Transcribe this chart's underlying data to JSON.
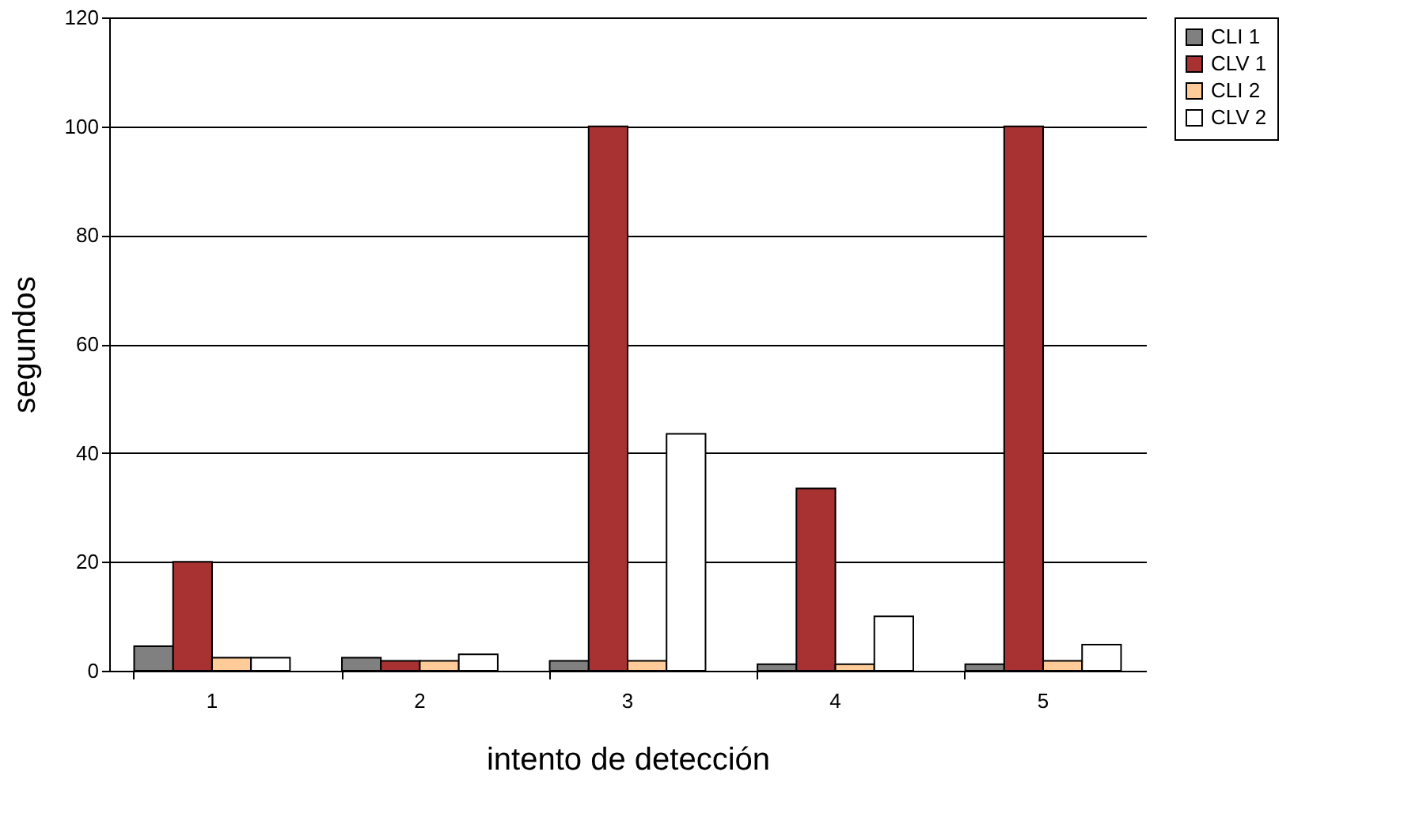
{
  "chart_data": {
    "type": "bar",
    "xlabel": "intento de detección",
    "ylabel": "segundos",
    "categories": [
      "1",
      "2",
      "3",
      "4",
      "5"
    ],
    "series": [
      {
        "name": "CLI 1",
        "color": "#808080",
        "values": [
          4.5,
          2.4,
          1.8,
          1.2,
          1.2
        ]
      },
      {
        "name": "CLV 1",
        "color": "#a83232",
        "values": [
          20,
          1.8,
          100,
          33.5,
          100
        ]
      },
      {
        "name": "CLI 2",
        "color": "#ffcc99",
        "values": [
          2.4,
          1.8,
          1.8,
          1.2,
          1.8
        ]
      },
      {
        "name": "CLV 2",
        "color": "#ffffff",
        "values": [
          2.4,
          3,
          43.5,
          10,
          4.8
        ]
      }
    ],
    "ylim": [
      0,
      120
    ],
    "yticks": [
      0,
      20,
      40,
      60,
      80,
      100,
      120
    ],
    "grid": "y",
    "legend": "right"
  }
}
